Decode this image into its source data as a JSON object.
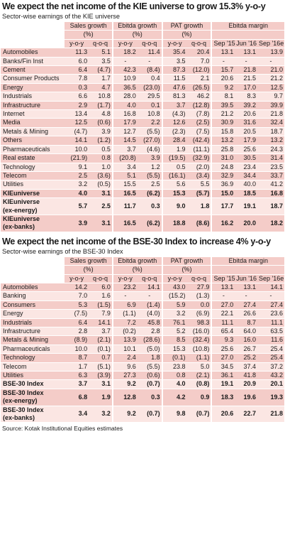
{
  "kie": {
    "title": "We expect the net income of the KIE universe to grow 15.3% y-o-y",
    "subtitle": "Sector-wise earnings of the KIE universe",
    "groups": [
      "Sales growth",
      "Ebitda growth",
      "PAT growth",
      "Ebitda margin"
    ],
    "unit": "(%)",
    "subheads": [
      "y-o-y",
      "q-o-q",
      "y-o-y",
      "q-o-q",
      "y-o-y",
      "q-o-q",
      "Sep '15",
      "Jun '16",
      "Sep '16e"
    ],
    "rows": [
      {
        "label": "Automobiles",
        "values": [
          "11.3",
          "5.1",
          "18.2",
          "11.4",
          "35.4",
          "20.4",
          "13.1",
          "13.1",
          "13.9"
        ]
      },
      {
        "label": "Banks/Fin Inst",
        "values": [
          "6.0",
          "3.5",
          "-",
          "-",
          "3.5",
          "7.0",
          "-",
          "-",
          "-"
        ]
      },
      {
        "label": "Cement",
        "values": [
          "6.4",
          "(4.7)",
          "42.3",
          "(8.4)",
          "87.3",
          "(12.0)",
          "15.7",
          "21.8",
          "21.0"
        ]
      },
      {
        "label": "Consumer Products",
        "values": [
          "7.8",
          "1.7",
          "10.9",
          "0.4",
          "11.5",
          "2.1",
          "20.6",
          "21.5",
          "21.2"
        ]
      },
      {
        "label": "Energy",
        "values": [
          "0.3",
          "4.7",
          "36.5",
          "(23.0)",
          "47.6",
          "(26.5)",
          "9.2",
          "17.0",
          "12.5"
        ]
      },
      {
        "label": "Industrials",
        "values": [
          "6.6",
          "10.8",
          "28.0",
          "29.5",
          "81.3",
          "46.2",
          "8.1",
          "8.3",
          "9.7"
        ]
      },
      {
        "label": "Infrastructure",
        "values": [
          "2.9",
          "(1.7)",
          "4.0",
          "0.1",
          "3.7",
          "(12.8)",
          "39.5",
          "39.2",
          "39.9"
        ]
      },
      {
        "label": "Internet",
        "values": [
          "13.4",
          "4.8",
          "16.8",
          "10.8",
          "(4.3)",
          "(7.8)",
          "21.2",
          "20.6",
          "21.8"
        ]
      },
      {
        "label": "Media",
        "values": [
          "12.5",
          "(0.6)",
          "17.9",
          "2.2",
          "12.6",
          "(2.5)",
          "30.9",
          "31.6",
          "32.4"
        ]
      },
      {
        "label": "Metals & Mining",
        "values": [
          "(4.7)",
          "3.9",
          "12.7",
          "(5.5)",
          "(2.3)",
          "(7.5)",
          "15.8",
          "20.5",
          "18.7"
        ]
      },
      {
        "label": "Others",
        "values": [
          "14.1",
          "(1.2)",
          "14.5",
          "(27.0)",
          "28.4",
          "(42.4)",
          "13.2",
          "17.9",
          "13.2"
        ]
      },
      {
        "label": "Pharmaceuticals",
        "values": [
          "10.0",
          "0.5",
          "3.7",
          "(4.6)",
          "1.9",
          "(11.1)",
          "25.8",
          "25.6",
          "24.3"
        ]
      },
      {
        "label": "Real estate",
        "values": [
          "(21.9)",
          "0.8",
          "(20.8)",
          "3.9",
          "(19.5)",
          "(32.9)",
          "31.0",
          "30.5",
          "31.4"
        ]
      },
      {
        "label": "Technology",
        "values": [
          "9.1",
          "1.0",
          "3.4",
          "1.2",
          "0.5",
          "(2.0)",
          "24.8",
          "23.4",
          "23.5"
        ]
      },
      {
        "label": "Telecom",
        "values": [
          "2.5",
          "(3.6)",
          "5.1",
          "(5.5)",
          "(16.1)",
          "(3.4)",
          "32.9",
          "34.4",
          "33.7"
        ]
      },
      {
        "label": "Utilities",
        "values": [
          "3.2",
          "(0.5)",
          "15.5",
          "2.5",
          "5.6",
          "5.5",
          "36.9",
          "40.0",
          "41.2"
        ]
      },
      {
        "label": "KIEuniverse",
        "values": [
          "4.0",
          "3.1",
          "16.5",
          "(6.2)",
          "15.3",
          "(5.7)",
          "15.0",
          "18.5",
          "16.8"
        ],
        "bold": true
      },
      {
        "label": [
          "KIEuniverse",
          "(ex-energy)"
        ],
        "values": [
          "5.7",
          "2.5",
          "11.7",
          "0.3",
          "9.0",
          "1.8",
          "17.7",
          "19.1",
          "18.7"
        ],
        "bold": true
      },
      {
        "label": [
          "KIEuniverse",
          "(ex-banks)"
        ],
        "values": [
          "3.9",
          "3.1",
          "16.5",
          "(6.2)",
          "18.8",
          "(8.6)",
          "16.2",
          "20.0",
          "18.2"
        ],
        "bold": true
      }
    ]
  },
  "bse": {
    "title": "We expect the net income of the BSE-30 Index to increase 4% y-o-y",
    "subtitle": "Sector-wise earnings of the BSE-30 Index",
    "groups": [
      "Sales growth",
      "Ebitda growth",
      "PAT growth",
      "Ebitda margin"
    ],
    "unit": "(%)",
    "subheads": [
      "y-o-y",
      "q-o-q",
      "y-o-y",
      "q-o-q",
      "y-o-y",
      "q-o-q",
      "Sep '15",
      "Jun '16",
      "Sep '16e"
    ],
    "rows": [
      {
        "label": "Automobiles",
        "values": [
          "14.2",
          "6.0",
          "23.2",
          "14.1",
          "43.0",
          "27.9",
          "13.1",
          "13.1",
          "14.1"
        ]
      },
      {
        "label": "Banking",
        "values": [
          "7.0",
          "1.6",
          "-",
          "-",
          "(15.2)",
          "(1.3)",
          "-",
          "-",
          "-"
        ]
      },
      {
        "label": "Consumers",
        "values": [
          "5.3",
          "(1.5)",
          "6.9",
          "(1.4)",
          "5.9",
          "0.0",
          "27.0",
          "27.4",
          "27.4"
        ]
      },
      {
        "label": "Energy",
        "values": [
          "(7.5)",
          "7.9",
          "(1.1)",
          "(4.0)",
          "3.2",
          "(6.9)",
          "22.1",
          "26.6",
          "23.6"
        ]
      },
      {
        "label": "Industrials",
        "values": [
          "6.4",
          "14.1",
          "7.2",
          "45.8",
          "76.1",
          "98.3",
          "11.1",
          "8.7",
          "11.1"
        ]
      },
      {
        "label": "Infrastructure",
        "values": [
          "2.8",
          "3.7",
          "(0.2)",
          "2.8",
          "5.2",
          "(16.0)",
          "65.4",
          "64.0",
          "63.5"
        ]
      },
      {
        "label": "Metals & Mining",
        "values": [
          "(8.9)",
          "(2.1)",
          "13.9",
          "(28.6)",
          "8.5",
          "(32.4)",
          "9.3",
          "16.0",
          "11.6"
        ]
      },
      {
        "label": "Pharmaceuticals",
        "values": [
          "10.0",
          "(0.1)",
          "10.1",
          "(5.0)",
          "15.3",
          "(10.8)",
          "25.6",
          "26.7",
          "25.4"
        ]
      },
      {
        "label": "Technology",
        "values": [
          "8.7",
          "0.7",
          "2.4",
          "1.8",
          "(0.1)",
          "(1.1)",
          "27.0",
          "25.2",
          "25.4"
        ]
      },
      {
        "label": "Telecom",
        "values": [
          "1.7",
          "(5.1)",
          "9.6",
          "(5.5)",
          "23.8",
          "5.0",
          "34.5",
          "37.4",
          "37.2"
        ]
      },
      {
        "label": "Utilities",
        "values": [
          "6.3",
          "(3.9)",
          "27.3",
          "(0.6)",
          "0.8",
          "(2.1)",
          "36.1",
          "41.8",
          "43.2"
        ]
      },
      {
        "label": "BSE-30 Index",
        "values": [
          "3.7",
          "3.1",
          "9.2",
          "(0.7)",
          "4.0",
          "(0.8)",
          "19.1",
          "20.9",
          "20.1"
        ],
        "bold": true
      },
      {
        "label": [
          "BSE-30 Index",
          "(ex-energy)"
        ],
        "values": [
          "6.8",
          "1.9",
          "12.8",
          "0.3",
          "4.2",
          "0.9",
          "18.3",
          "19.6",
          "19.3"
        ],
        "bold": true
      },
      {
        "label": [
          "BSE-30 Index",
          "(ex-banks)"
        ],
        "values": [
          "3.4",
          "3.2",
          "9.2",
          "(0.7)",
          "9.8",
          "(0.7)",
          "20.6",
          "22.7",
          "21.8"
        ],
        "bold": true
      }
    ],
    "source": "Source: Kotak Institutional Equities estimates"
  },
  "colors": {
    "band_dark": "#f4ccc8",
    "band_light": "#fbe6e3",
    "text": "#1a1a1a"
  }
}
